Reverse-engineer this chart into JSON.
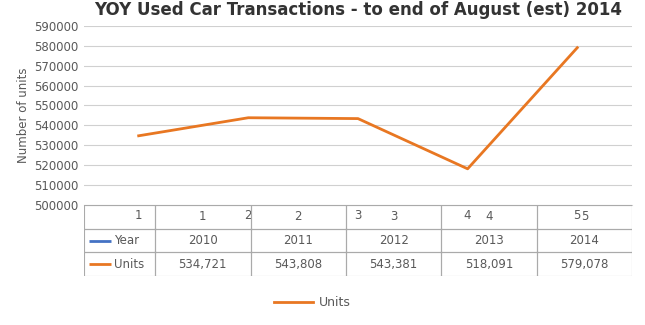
{
  "title": "YOY Used Car Transactions - to end of August (est) 2014",
  "x_values": [
    1,
    2,
    3,
    4,
    5
  ],
  "years": [
    "2010",
    "2011",
    "2012",
    "2013",
    "2014"
  ],
  "units": [
    534721,
    543808,
    543381,
    518091,
    579078
  ],
  "units_labels": [
    "534,721",
    "543,808",
    "543,381",
    "518,091",
    "579,078"
  ],
  "line_color": "#E87722",
  "year_line_color": "#4472C4",
  "ylabel": "Number of units",
  "ylim": [
    500000,
    590000
  ],
  "yticks": [
    500000,
    510000,
    520000,
    530000,
    540000,
    550000,
    560000,
    570000,
    580000,
    590000
  ],
  "ytick_labels": [
    "500000",
    "510000",
    "520000",
    "530000",
    "540000",
    "550000",
    "560000",
    "570000",
    "580000",
    "590000"
  ],
  "bg_color": "#FFFFFF",
  "grid_color": "#D0D0D0",
  "title_color": "#333333",
  "tick_color": "#595959",
  "legend_label": "Units",
  "title_fontsize": 12,
  "axis_label_fontsize": 8.5,
  "tick_fontsize": 8.5,
  "table_fontsize": 8.5
}
